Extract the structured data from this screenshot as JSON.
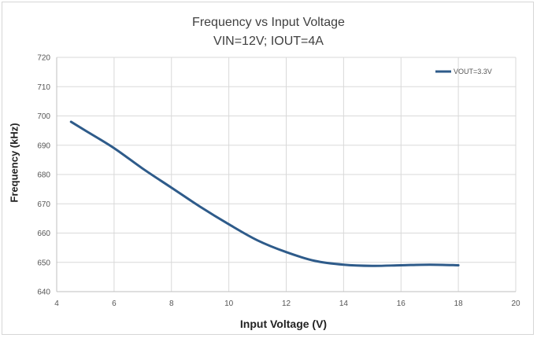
{
  "chart_data": {
    "type": "line",
    "title": "Frequency vs Input Voltage",
    "subtitle": "VIN=12V; IOUT=4A",
    "xlabel": "Input Voltage (V)",
    "ylabel": "Frequency (kHz)",
    "xlim": [
      4,
      20
    ],
    "ylim": [
      640,
      720
    ],
    "xticks": [
      4,
      6,
      8,
      10,
      12,
      14,
      16,
      18,
      20
    ],
    "yticks": [
      640,
      650,
      660,
      670,
      680,
      690,
      700,
      710,
      720
    ],
    "grid": true,
    "legend_position": "top-right",
    "series": [
      {
        "name": "VOUT=3.3V",
        "color": "#2e5b8a",
        "x": [
          4.5,
          5,
          6,
          7,
          8,
          9,
          10,
          11,
          12,
          13,
          14,
          15,
          16,
          17,
          18
        ],
        "y": [
          698,
          695,
          689,
          682,
          675.5,
          669,
          663,
          657.5,
          653.5,
          650.5,
          649.2,
          648.8,
          649,
          649.2,
          649
        ]
      }
    ]
  }
}
